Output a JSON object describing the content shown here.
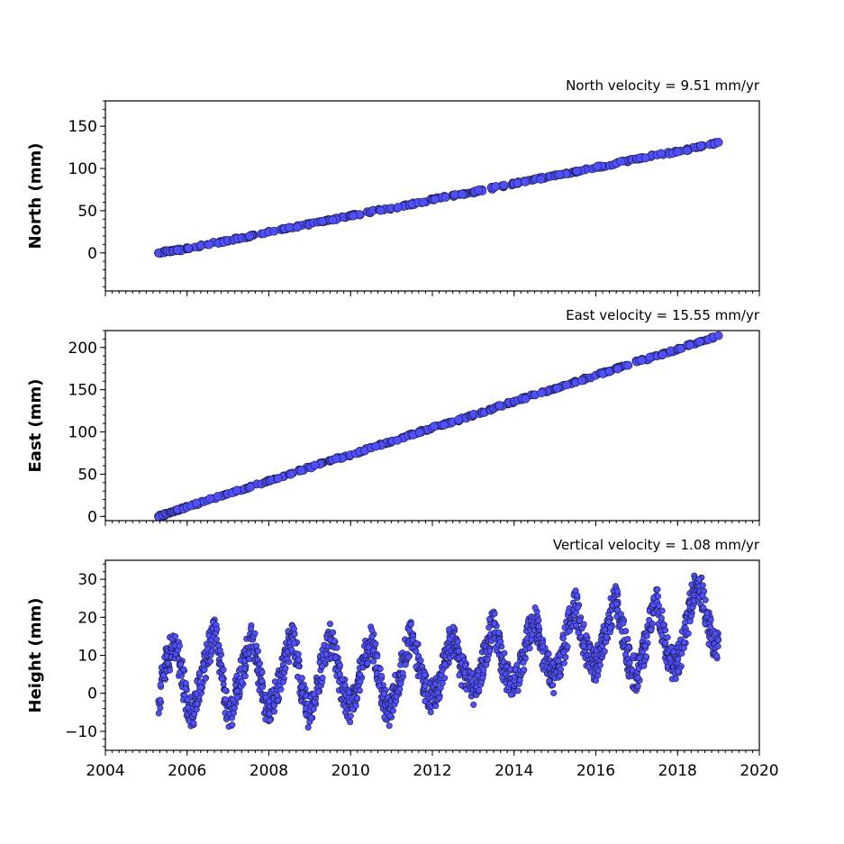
{
  "chart_data": [
    {
      "type": "scatter",
      "title": "North velocity = 9.51 mm/yr",
      "ylabel": "North (mm)",
      "xlim": [
        2004,
        2020
      ],
      "ylim": [
        -45,
        180
      ],
      "yticks": [
        0,
        50,
        100,
        150
      ],
      "xticks": [
        2004,
        2006,
        2008,
        2010,
        2012,
        2014,
        2016,
        2018,
        2020
      ],
      "show_xticklabels": false,
      "marker_color": "#4f4fff",
      "marker_edge": "#1a1a3a",
      "series": [
        {
          "x": [
            2005.3,
            2005.5,
            2005.75,
            2006.0,
            2006.5,
            2007.0,
            2007.5,
            2008.0,
            2008.5,
            2009.0,
            2009.5,
            2010.0,
            2010.5,
            2011.0,
            2011.5,
            2012.0,
            2012.5,
            2013.0,
            2013.5,
            2014.0,
            2014.5,
            2015.0,
            2015.5,
            2016.0,
            2016.5,
            2017.0,
            2017.5,
            2018.0,
            2018.5,
            2019.0
          ],
          "y": [
            0,
            2,
            3,
            5,
            10,
            15,
            19,
            25,
            30,
            34,
            39,
            44,
            49,
            53,
            58,
            63,
            68,
            72,
            77,
            82,
            87,
            91,
            96,
            101,
            106,
            111,
            116,
            120,
            125,
            131
          ]
        }
      ]
    },
    {
      "type": "scatter",
      "title": "East velocity = 15.55 mm/yr",
      "ylabel": "East (mm)",
      "xlim": [
        2004,
        2020
      ],
      "ylim": [
        -5,
        220
      ],
      "yticks": [
        0,
        50,
        100,
        150,
        200
      ],
      "xticks": [
        2004,
        2006,
        2008,
        2010,
        2012,
        2014,
        2016,
        2018,
        2020
      ],
      "show_xticklabels": false,
      "marker_color": "#4f4fff",
      "marker_edge": "#1a1a3a",
      "series": [
        {
          "x": [
            2005.3,
            2005.5,
            2005.75,
            2006.0,
            2006.5,
            2007.0,
            2007.5,
            2008.0,
            2008.5,
            2009.0,
            2009.5,
            2010.0,
            2010.5,
            2011.0,
            2011.5,
            2012.0,
            2012.5,
            2013.0,
            2013.5,
            2014.0,
            2014.5,
            2015.0,
            2015.5,
            2016.0,
            2016.5,
            2017.0,
            2017.5,
            2018.0,
            2018.5,
            2019.0
          ],
          "y": [
            0,
            3,
            7,
            11,
            19,
            27,
            34,
            42,
            50,
            58,
            66,
            73,
            81,
            89,
            97,
            105,
            112,
            120,
            128,
            136,
            144,
            151,
            159,
            167,
            175,
            183,
            190,
            198,
            206,
            214
          ]
        }
      ]
    },
    {
      "type": "scatter",
      "title": "Vertical velocity = 1.08 mm/yr",
      "ylabel": "Height (mm)",
      "xlim": [
        2004,
        2020
      ],
      "ylim": [
        -15,
        35
      ],
      "yticks": [
        -10,
        0,
        10,
        20,
        30
      ],
      "xticks": [
        2004,
        2006,
        2008,
        2010,
        2012,
        2014,
        2016,
        2018,
        2020
      ],
      "xticklabels": [
        "2004",
        "2006",
        "2008",
        "2010",
        "2012",
        "2014",
        "2016",
        "2018",
        "2020"
      ],
      "show_xticklabels": true,
      "marker_color": "#4f4fff",
      "marker_edge": "#1a1a3a",
      "series": [
        {
          "x": [
            2005.3,
            2005.4,
            2005.5,
            2005.6,
            2005.7,
            2005.8,
            2005.9,
            2006.0,
            2006.1,
            2006.2,
            2006.3,
            2006.4,
            2006.5,
            2006.6,
            2006.7,
            2006.8,
            2006.9,
            2007.0,
            2007.1,
            2007.2,
            2007.3,
            2007.4,
            2007.5,
            2007.6,
            2007.7,
            2007.8,
            2007.9,
            2008.0,
            2008.1,
            2008.2,
            2008.3,
            2008.4,
            2008.5,
            2008.6,
            2008.7,
            2008.8,
            2008.9,
            2009.0,
            2009.1,
            2009.2,
            2009.3,
            2009.4,
            2009.5,
            2009.6,
            2009.7,
            2009.8,
            2009.9,
            2010.0,
            2010.1,
            2010.2,
            2010.3,
            2010.4,
            2010.5,
            2010.6,
            2010.7,
            2010.8,
            2010.9,
            2011.0,
            2011.1,
            2011.2,
            2011.3,
            2011.4,
            2011.5,
            2011.6,
            2011.7,
            2011.8,
            2011.9,
            2012.0,
            2012.1,
            2012.2,
            2012.3,
            2012.4,
            2012.5,
            2012.6,
            2012.7,
            2012.8,
            2012.9,
            2013.0,
            2013.1,
            2013.2,
            2013.3,
            2013.4,
            2013.5,
            2013.6,
            2013.7,
            2013.8,
            2013.9,
            2014.0,
            2014.1,
            2014.2,
            2014.3,
            2014.4,
            2014.5,
            2014.6,
            2014.7,
            2014.8,
            2014.9,
            2015.0,
            2015.1,
            2015.2,
            2015.3,
            2015.4,
            2015.5,
            2015.6,
            2015.7,
            2015.8,
            2015.9,
            2016.0,
            2016.1,
            2016.2,
            2016.3,
            2016.4,
            2016.5,
            2016.6,
            2016.7,
            2016.8,
            2016.9,
            2017.0,
            2017.1,
            2017.2,
            2017.3,
            2017.4,
            2017.5,
            2017.6,
            2017.7,
            2017.8,
            2017.9,
            2018.0,
            2018.1,
            2018.2,
            2018.3,
            2018.4,
            2018.5,
            2018.6,
            2018.7,
            2018.8,
            2018.9,
            2019.0
          ],
          "y": [
            -2,
            4,
            8,
            11,
            13,
            9,
            3,
            -2,
            -5,
            -3,
            2,
            6,
            10,
            14,
            16,
            8,
            1,
            -6,
            -4,
            0,
            4,
            8,
            12,
            15,
            9,
            3,
            -2,
            -5,
            -3,
            1,
            5,
            9,
            13,
            14,
            8,
            2,
            -3,
            -6,
            -2,
            3,
            7,
            11,
            14,
            12,
            6,
            1,
            -2,
            -4,
            -1,
            4,
            8,
            12,
            14,
            10,
            3,
            -1,
            -5,
            -3,
            1,
            5,
            9,
            13,
            15,
            11,
            6,
            2,
            0,
            -1,
            1,
            4,
            8,
            12,
            15,
            12,
            7,
            4,
            2,
            1,
            3,
            7,
            11,
            15,
            18,
            14,
            9,
            5,
            3,
            2,
            5,
            9,
            13,
            17,
            20,
            16,
            11,
            7,
            5,
            4,
            7,
            11,
            16,
            20,
            23,
            19,
            14,
            10,
            8,
            7,
            10,
            14,
            18,
            22,
            24,
            19,
            14,
            9,
            6,
            5,
            8,
            12,
            17,
            21,
            24,
            19,
            13,
            9,
            7,
            8,
            12,
            17,
            22,
            27,
            29,
            26,
            20,
            16,
            13,
            14
          ]
        }
      ]
    }
  ]
}
